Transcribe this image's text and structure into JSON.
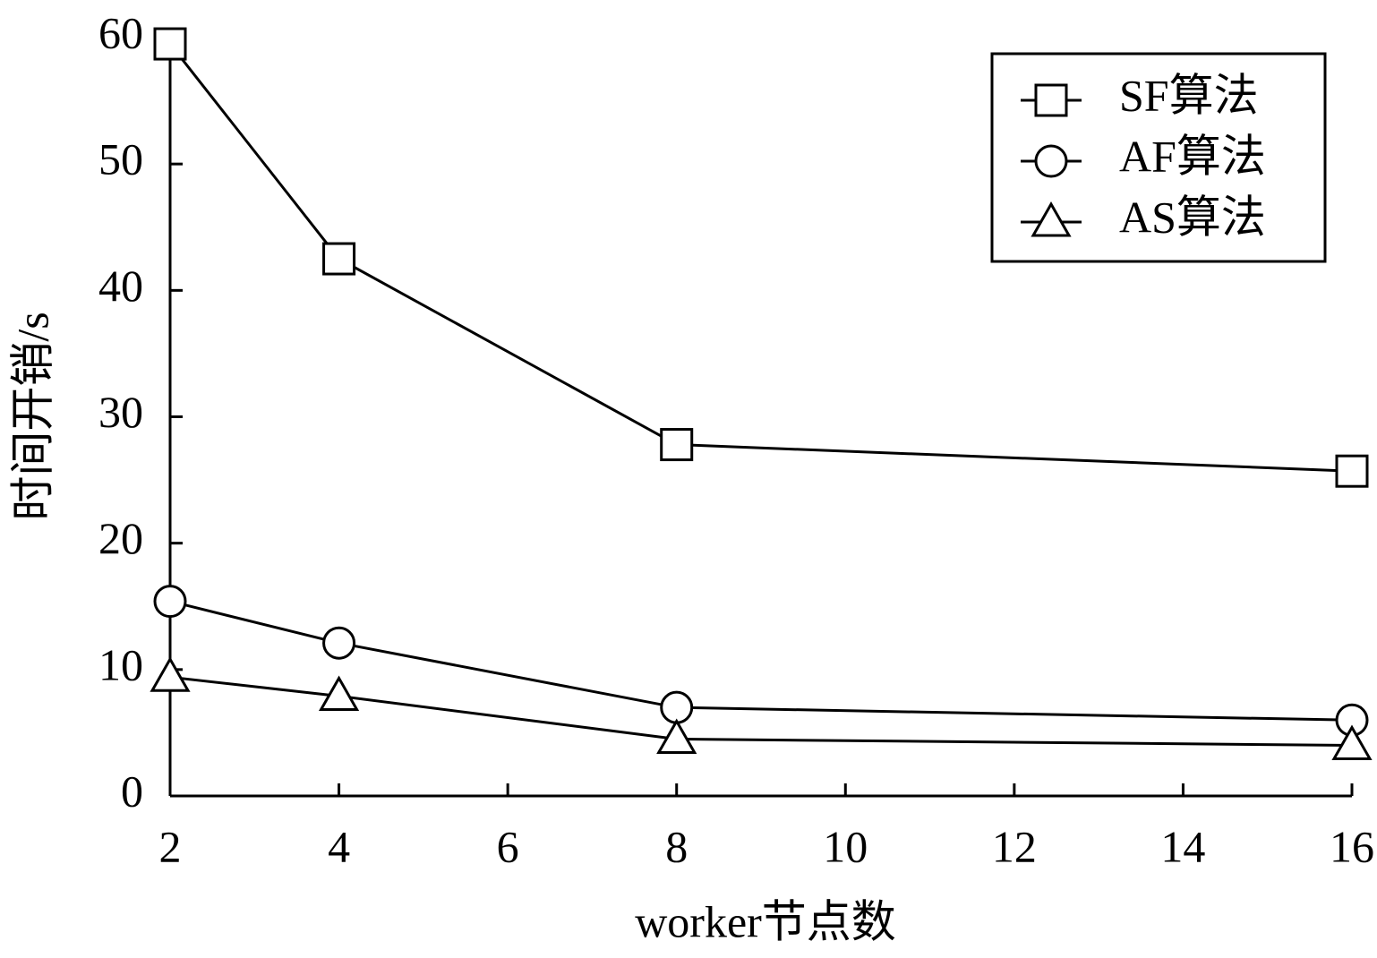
{
  "chart_data": {
    "type": "line",
    "xlabel": "worker节点数",
    "ylabel": "时间开销/s",
    "x": [
      2,
      4,
      8,
      16
    ],
    "series": [
      {
        "name": "SF算法",
        "color": "#000000",
        "marker": "square",
        "values": [
          59.5,
          42.5,
          27.8,
          25.7
        ]
      },
      {
        "name": "AF算法",
        "color": "#000000",
        "marker": "circle",
        "values": [
          15.4,
          12.1,
          7.0,
          6.0
        ]
      },
      {
        "name": "AS算法",
        "color": "#000000",
        "marker": "triangle",
        "values": [
          9.4,
          7.9,
          4.5,
          4.0
        ]
      }
    ],
    "xlim": [
      2,
      16
    ],
    "xticks": [
      2,
      4,
      6,
      8,
      10,
      12,
      14,
      16
    ],
    "ylim": [
      0,
      60
    ],
    "yticks": [
      0,
      10,
      20,
      30,
      40,
      50,
      60
    ],
    "grid": false,
    "legend": "top-right"
  }
}
